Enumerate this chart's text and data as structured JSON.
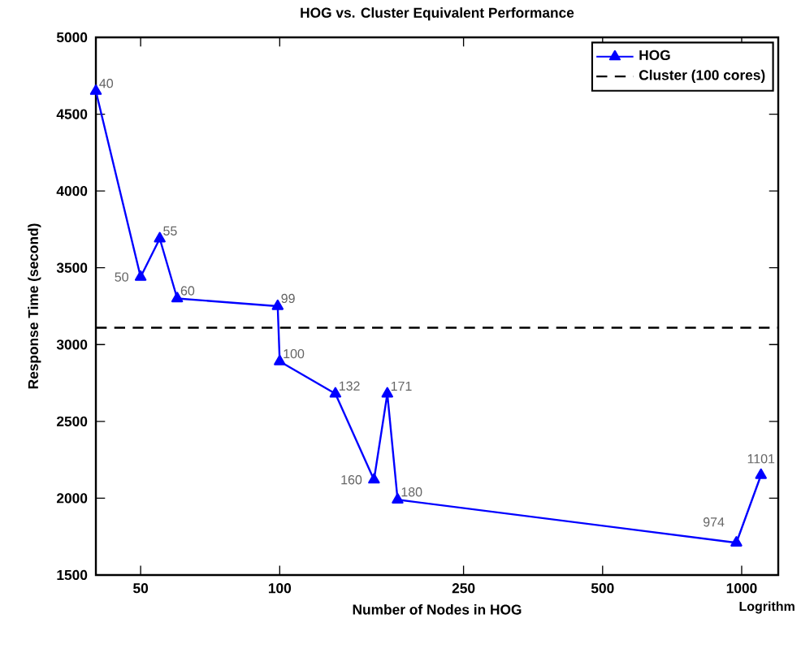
{
  "chart_data": {
    "type": "line",
    "title": "HOG vs. Cluster  Equivalent Performance",
    "xlabel": "Number of Nodes in HOG",
    "ylabel": "Response Time (second)",
    "x": [
      40,
      50,
      55,
      60,
      99,
      100,
      132,
      160,
      171,
      180,
      974,
      1101
    ],
    "series": [
      {
        "name": "HOG",
        "color": "#0000ff",
        "values": [
          4650,
          3440,
          3690,
          3300,
          3250,
          2890,
          2680,
          2120,
          2680,
          1990,
          1710,
          2150
        ]
      }
    ],
    "value_labels": [
      "40",
      "50",
      "55",
      "60",
      "99",
      "100",
      "132",
      "160",
      "171",
      "180",
      "974",
      "1101"
    ],
    "ref_lines": [
      {
        "axis": "y",
        "value": 3110,
        "label": "Cluster (100 cores)",
        "color": "#000000",
        "line_style": "dashed"
      }
    ],
    "xlim": [
      40,
      1200
    ],
    "ylim": [
      1500,
      5000
    ],
    "xticks": [
      50,
      100,
      250,
      500,
      1000
    ],
    "yticks": [
      1500,
      2000,
      2500,
      3000,
      3500,
      4000,
      4500,
      5000
    ],
    "log": "x",
    "grid": false,
    "legend": "top right",
    "marker": "triangle",
    "line_style": "solid",
    "annotations": [
      "Logrithm"
    ]
  }
}
